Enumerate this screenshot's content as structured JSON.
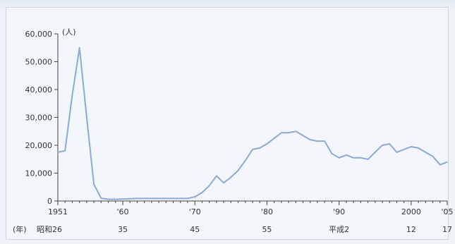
{
  "chart_data": {
    "type": "line",
    "y_unit": "(人)",
    "xlabel_prefix": "(年)",
    "ylim": [
      0,
      60000
    ],
    "xlim": [
      1951,
      2005
    ],
    "y_ticks": [
      "0",
      "10,000",
      "20,000",
      "30,000",
      "40,000",
      "50,000",
      "60,000"
    ],
    "x_tick_labels_western": [
      "1951",
      "'60",
      "'70",
      "'80",
      "'90",
      "2000",
      "'05"
    ],
    "x_tick_labels_japanese": [
      "昭和26",
      "35",
      "45",
      "55",
      "平成2",
      "12",
      "17"
    ],
    "x_tick_years": [
      1951,
      1960,
      1970,
      1980,
      1990,
      2000,
      2005
    ],
    "grid": false,
    "series": [
      {
        "x": [
          1951,
          1952,
          1953,
          1954,
          1955,
          1956,
          1957,
          1958,
          1959,
          1960,
          1961,
          1962,
          1963,
          1964,
          1965,
          1966,
          1967,
          1968,
          1969,
          1970,
          1971,
          1972,
          1973,
          1974,
          1975,
          1976,
          1977,
          1978,
          1979,
          1980,
          1981,
          1982,
          1983,
          1984,
          1985,
          1986,
          1987,
          1988,
          1989,
          1990,
          1991,
          1992,
          1993,
          1994,
          1995,
          1996,
          1997,
          1998,
          1999,
          2000,
          2001,
          2002,
          2003,
          2004,
          2005
        ],
        "values": [
          17500,
          18000,
          38000,
          55000,
          30000,
          6000,
          1000,
          600,
          600,
          700,
          800,
          900,
          900,
          900,
          900,
          900,
          900,
          900,
          900,
          1500,
          3000,
          5500,
          9000,
          6500,
          8500,
          11000,
          14500,
          18500,
          19000,
          20500,
          22500,
          24500,
          24500,
          25000,
          23500,
          22000,
          21500,
          21500,
          17000,
          15500,
          16500,
          15500,
          15500,
          15000,
          17500,
          20000,
          20500,
          17500,
          18500,
          19500,
          19000,
          17500,
          16000,
          13000,
          14000
        ],
        "color": "#8ea9d6"
      }
    ]
  }
}
